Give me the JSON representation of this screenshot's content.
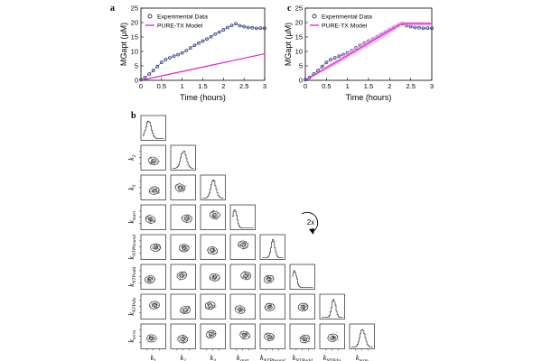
{
  "panels": {
    "a": {
      "label": "a"
    },
    "b": {
      "label": "b"
    },
    "c": {
      "label": "c"
    }
  },
  "rotate_note": "2x",
  "colors": {
    "experimental": "#1f2a7a",
    "model": "#e020d0",
    "model_band": "#f2a8ea",
    "ink": "#000000",
    "scatter": "#333333"
  },
  "chart_data": [
    {
      "id": "a",
      "type": "line",
      "xlabel": "Time (hours)",
      "ylabel": "MGapt (μM)",
      "xlim": [
        0,
        3
      ],
      "ylim": [
        0,
        25
      ],
      "xticks": [
        "0",
        "0.5",
        "1",
        "1.5",
        "2",
        "2.5",
        "3"
      ],
      "xtick_values": [
        0,
        0.5,
        1,
        1.5,
        2,
        2.5,
        3
      ],
      "yticks": [
        "0",
        "5",
        "10",
        "15",
        "20",
        "25"
      ],
      "ytick_values": [
        0,
        5,
        10,
        15,
        20,
        25
      ],
      "legend": [
        "Experimental Data",
        "PURE-TX Model"
      ],
      "series": [
        {
          "name": "Experimental Data",
          "kind": "markers",
          "x": [
            0,
            0.1,
            0.2,
            0.3,
            0.4,
            0.5,
            0.6,
            0.7,
            0.8,
            0.9,
            1.0,
            1.1,
            1.2,
            1.3,
            1.4,
            1.5,
            1.6,
            1.7,
            1.8,
            1.9,
            2.0,
            2.1,
            2.2,
            2.3,
            2.4,
            2.5,
            2.6,
            2.7,
            2.8,
            2.9,
            3.0
          ],
          "y": [
            0.2,
            1.0,
            2.2,
            3.4,
            4.8,
            6.2,
            7.2,
            7.8,
            8.4,
            8.9,
            9.5,
            10.3,
            11.2,
            12.1,
            12.9,
            13.6,
            14.3,
            15.1,
            16.0,
            16.7,
            17.5,
            18.3,
            19.0,
            19.6,
            18.9,
            18.6,
            18.3,
            18.2,
            18.0,
            18.1,
            18.0
          ]
        },
        {
          "name": "PURE-TX Model",
          "kind": "line",
          "x": [
            0,
            3.0
          ],
          "y": [
            0,
            9.2
          ]
        }
      ]
    },
    {
      "id": "c",
      "type": "line",
      "xlabel": "Time (hours)",
      "ylabel": "MGapt (μM)",
      "xlim": [
        0,
        3
      ],
      "ylim": [
        0,
        25
      ],
      "xticks": [
        "0",
        "0.5",
        "1",
        "1.5",
        "2",
        "2.5",
        "3"
      ],
      "xtick_values": [
        0,
        0.5,
        1,
        1.5,
        2,
        2.5,
        3
      ],
      "yticks": [
        "0",
        "5",
        "10",
        "15",
        "20",
        "25"
      ],
      "ytick_values": [
        0,
        5,
        10,
        15,
        20,
        25
      ],
      "legend": [
        "Experimental Data",
        "PURE-TX Model"
      ],
      "series": [
        {
          "name": "Experimental Data",
          "kind": "markers",
          "x": [
            0,
            0.1,
            0.2,
            0.3,
            0.4,
            0.5,
            0.6,
            0.7,
            0.8,
            0.9,
            1.0,
            1.1,
            1.2,
            1.3,
            1.4,
            1.5,
            1.6,
            1.7,
            1.8,
            1.9,
            2.0,
            2.1,
            2.2,
            2.3,
            2.4,
            2.5,
            2.6,
            2.7,
            2.8,
            2.9,
            3.0
          ],
          "y": [
            0.2,
            1.0,
            2.2,
            3.4,
            4.8,
            6.2,
            7.2,
            7.8,
            8.4,
            8.9,
            9.5,
            10.3,
            11.2,
            12.1,
            12.9,
            13.6,
            14.3,
            15.1,
            16.0,
            16.7,
            17.5,
            18.3,
            19.0,
            19.6,
            18.9,
            18.6,
            18.3,
            18.2,
            18.0,
            18.1,
            18.0
          ]
        },
        {
          "name": "PURE-TX Model",
          "kind": "line",
          "x": [
            0,
            0.5,
            1.0,
            1.5,
            2.0,
            2.25,
            2.4,
            3.0
          ],
          "y": [
            0,
            4.3,
            8.6,
            12.9,
            17.2,
            19.4,
            19.6,
            19.6
          ],
          "band_upper": [
            0,
            5.0,
            9.6,
            14.0,
            18.4,
            20.3,
            20.3,
            20.3
          ],
          "band_lower": [
            0,
            3.6,
            7.6,
            11.8,
            16.0,
            18.6,
            19.0,
            19.0
          ]
        }
      ]
    },
    {
      "id": "b",
      "type": "scatter",
      "subtype": "corner-plot",
      "parameters": [
        "k1",
        "k2",
        "k3",
        "kstart",
        "kNTPbound",
        "kNTPadd",
        "kNTPdis",
        "kterm"
      ],
      "axis_labels": [
        {
          "base": "k",
          "sub": "1"
        },
        {
          "base": "k",
          "sub": "2"
        },
        {
          "base": "k",
          "sub": "3"
        },
        {
          "base": "k",
          "sub": "start"
        },
        {
          "base": "k",
          "sub": "NTPbound"
        },
        {
          "base": "k",
          "sub": "NTPadd"
        },
        {
          "base": "k",
          "sub": "NTPdis"
        },
        {
          "base": "k",
          "sub": "term"
        }
      ],
      "diagonal": "histogram",
      "off_diagonal": "2d scatter with density contours",
      "histogram_peaks": [
        0.25,
        0.5,
        0.5,
        0.1,
        0.5,
        0.1,
        0.55,
        0.5
      ],
      "histogram_spread": [
        0.13,
        0.13,
        0.12,
        0.1,
        0.09,
        0.1,
        0.09,
        0.12
      ]
    }
  ]
}
